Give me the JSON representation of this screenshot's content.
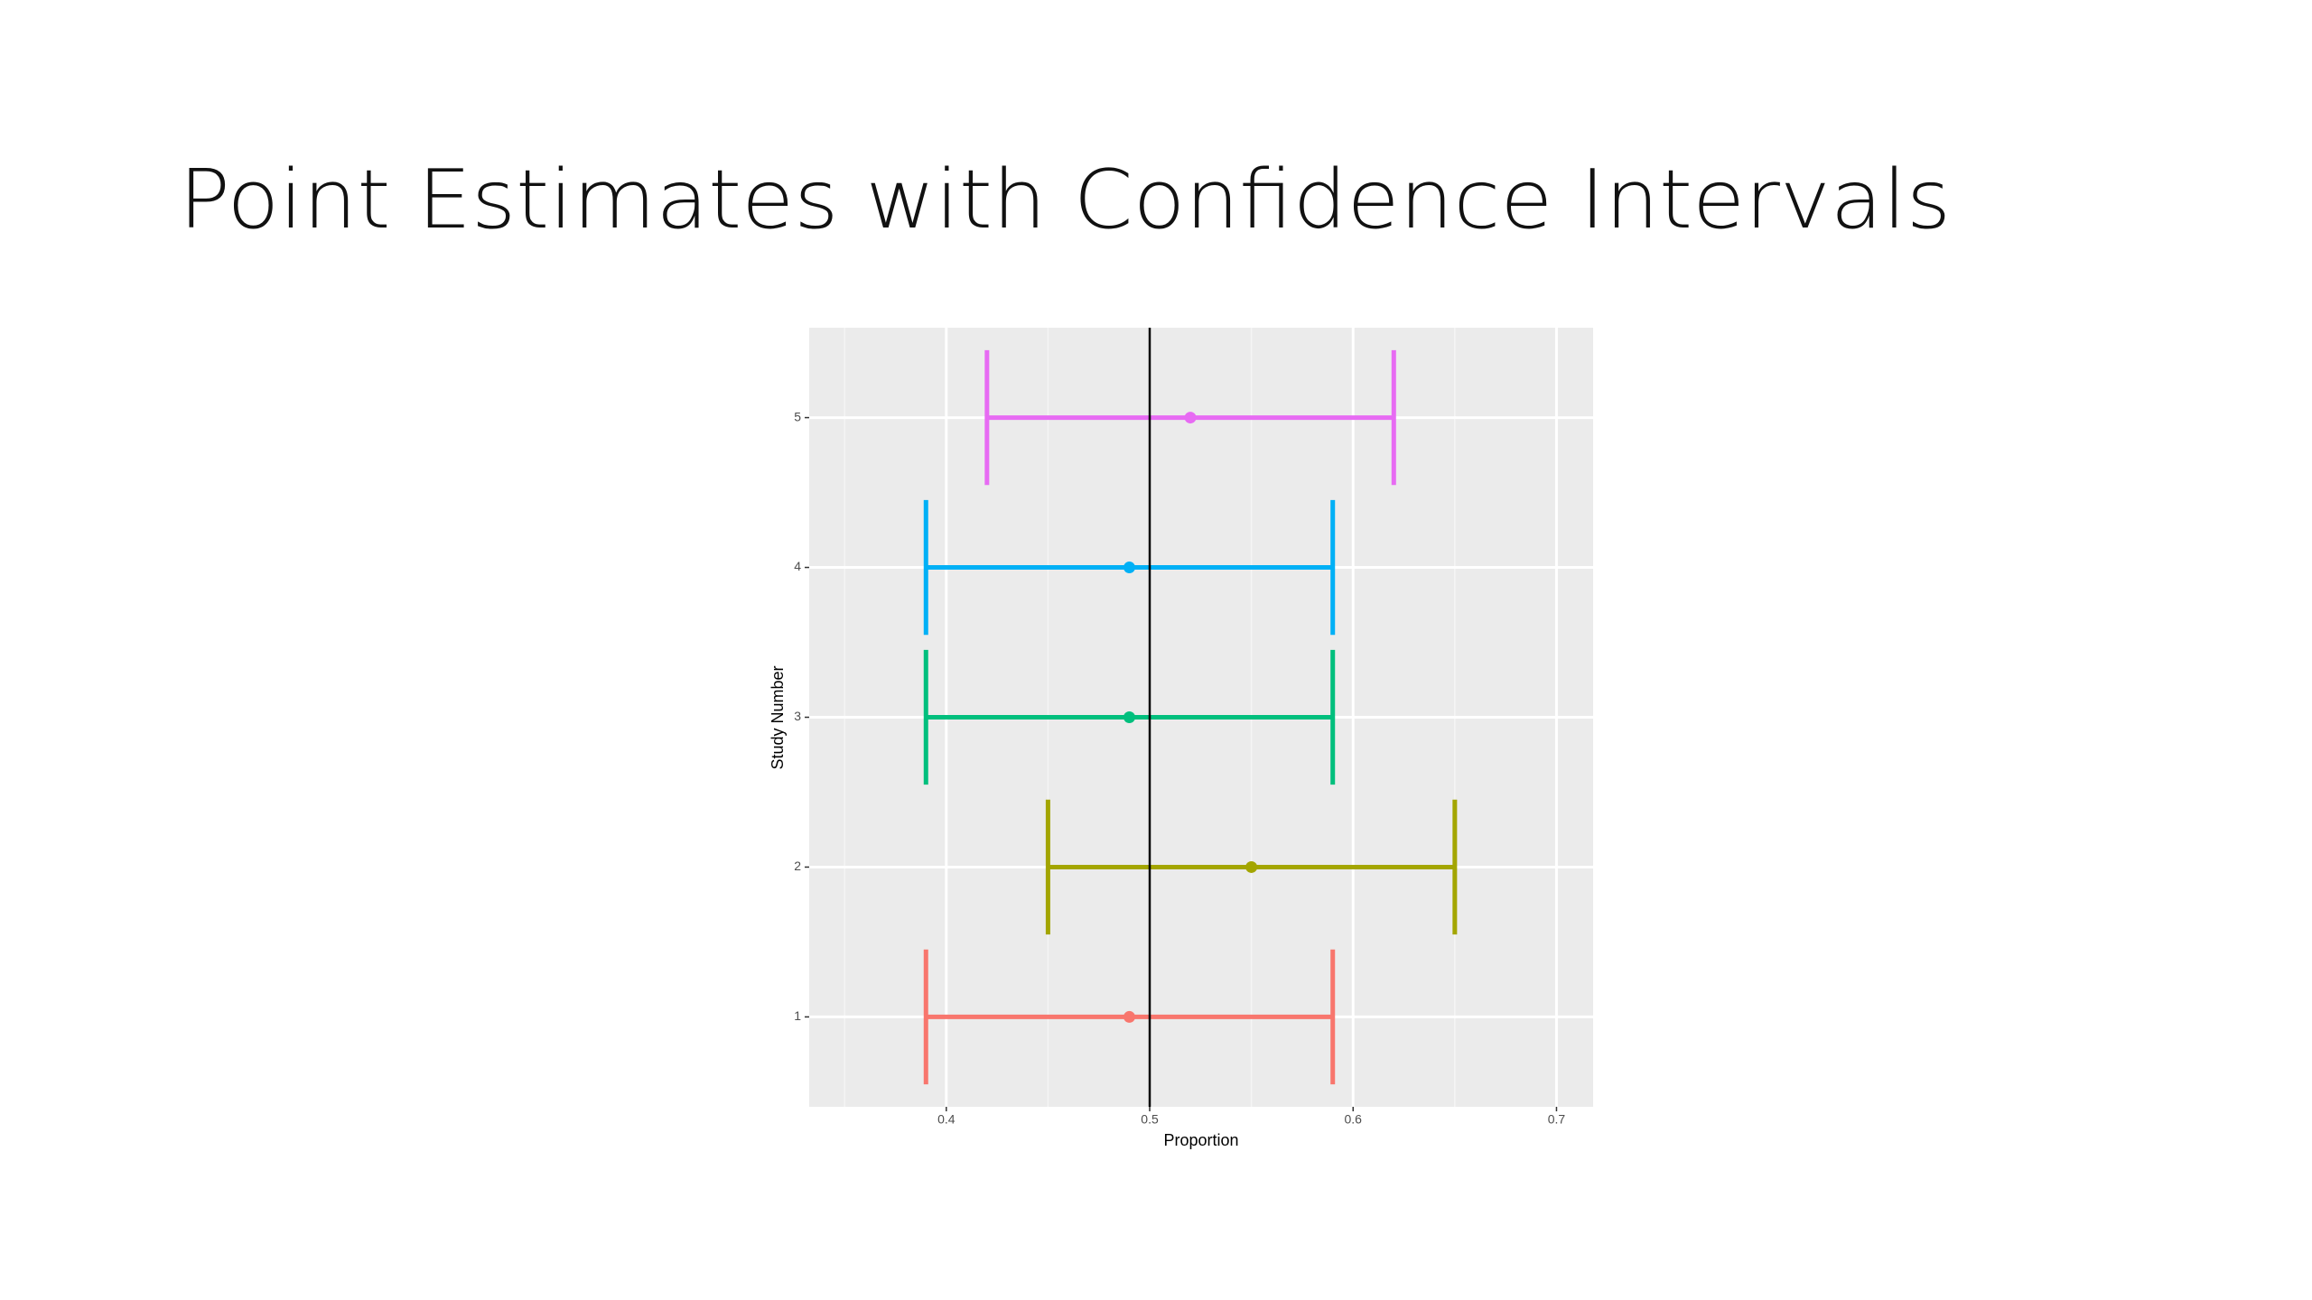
{
  "chart_data": {
    "type": "errorbar",
    "title": "Point Estimates with Confidence Intervals",
    "xlabel": "Proportion",
    "ylabel": "Study Number",
    "categories": [
      1,
      2,
      3,
      4,
      5
    ],
    "values": [
      0.49,
      0.55,
      0.49,
      0.49,
      0.52
    ],
    "lower": [
      0.39,
      0.45,
      0.39,
      0.39,
      0.42
    ],
    "upper": [
      0.59,
      0.65,
      0.59,
      0.59,
      0.62
    ],
    "colors": [
      "#f8766d",
      "#a3a500",
      "#00bf7d",
      "#00b0f6",
      "#e76bf3"
    ],
    "refline": 0.5,
    "xlim": [
      0.3326,
      0.718
    ],
    "xticks": [
      0.4,
      0.5,
      0.6,
      0.7
    ],
    "x_minor_grid": [
      0.35,
      0.45,
      0.55,
      0.65
    ],
    "ylim": [
      0.4,
      5.6
    ],
    "yticks": [
      1,
      2,
      3,
      4,
      5
    ],
    "grid": true
  }
}
